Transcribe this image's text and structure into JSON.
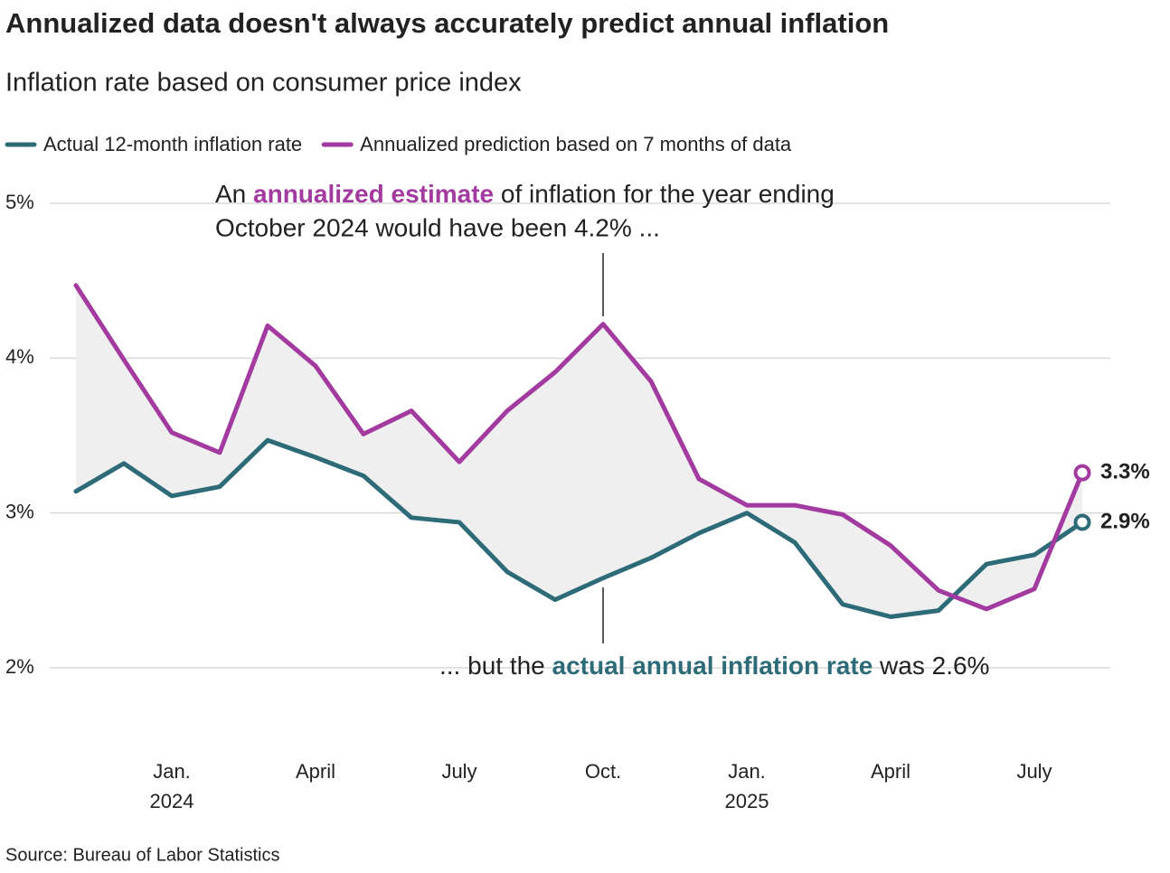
{
  "chart_data": {
    "type": "line",
    "title": "Annualized data doesn't always accurately predict annual inflation",
    "subtitle": "Inflation rate based on consumer price index",
    "source": "Source: Bureau of Labor Statistics",
    "categories": [
      null,
      null,
      "Jan.",
      null,
      null,
      "April",
      null,
      null,
      "July",
      null,
      null,
      "Oct.",
      null,
      null,
      "Jan.",
      null,
      null,
      "April",
      null,
      null,
      "July",
      null
    ],
    "years": [
      "2024",
      "2025"
    ],
    "series": [
      {
        "name": "Actual 12-month inflation rate",
        "color": "#2e6b78",
        "values": [
          3.14,
          3.32,
          3.11,
          3.17,
          3.47,
          3.36,
          3.24,
          2.97,
          2.94,
          2.62,
          2.44,
          2.58,
          2.71,
          2.87,
          3.0,
          2.81,
          2.41,
          2.33,
          2.37,
          2.67,
          2.73,
          2.94
        ],
        "value_labels": [
          null,
          null,
          null,
          null,
          null,
          null,
          null,
          null,
          null,
          null,
          null,
          null,
          null,
          null,
          null,
          null,
          null,
          null,
          null,
          null,
          null,
          "2.9%"
        ]
      },
      {
        "name": "Annualized prediction based on 7 months of data",
        "color": "#a23aa0",
        "values": [
          4.47,
          3.99,
          3.52,
          3.39,
          4.21,
          3.95,
          3.51,
          3.66,
          3.33,
          3.66,
          3.91,
          4.22,
          3.85,
          3.22,
          3.05,
          3.05,
          2.99,
          2.79,
          2.5,
          2.38,
          2.51,
          3.26
        ],
        "value_labels": [
          null,
          null,
          null,
          null,
          null,
          null,
          null,
          null,
          null,
          null,
          null,
          "4.2%",
          null,
          null,
          null,
          null,
          null,
          null,
          null,
          null,
          null,
          "3.3%"
        ]
      }
    ],
    "ylim": [
      2,
      5
    ],
    "yticks": [
      {
        "value": 2,
        "label": "2%"
      },
      {
        "value": 3,
        "label": "3%"
      },
      {
        "value": 4,
        "label": "4%"
      },
      {
        "value": 5,
        "label": "5%"
      }
    ],
    "grid": true,
    "annotation_top": {
      "line1": [
        "An ",
        "annualized estimate",
        " of inflation for the year ending"
      ],
      "line2": "October 2024 would have been 4.2% ..."
    },
    "annotation_bottom": [
      "... but the ",
      "actual annual inflation rate",
      " was 2.6%"
    ]
  }
}
